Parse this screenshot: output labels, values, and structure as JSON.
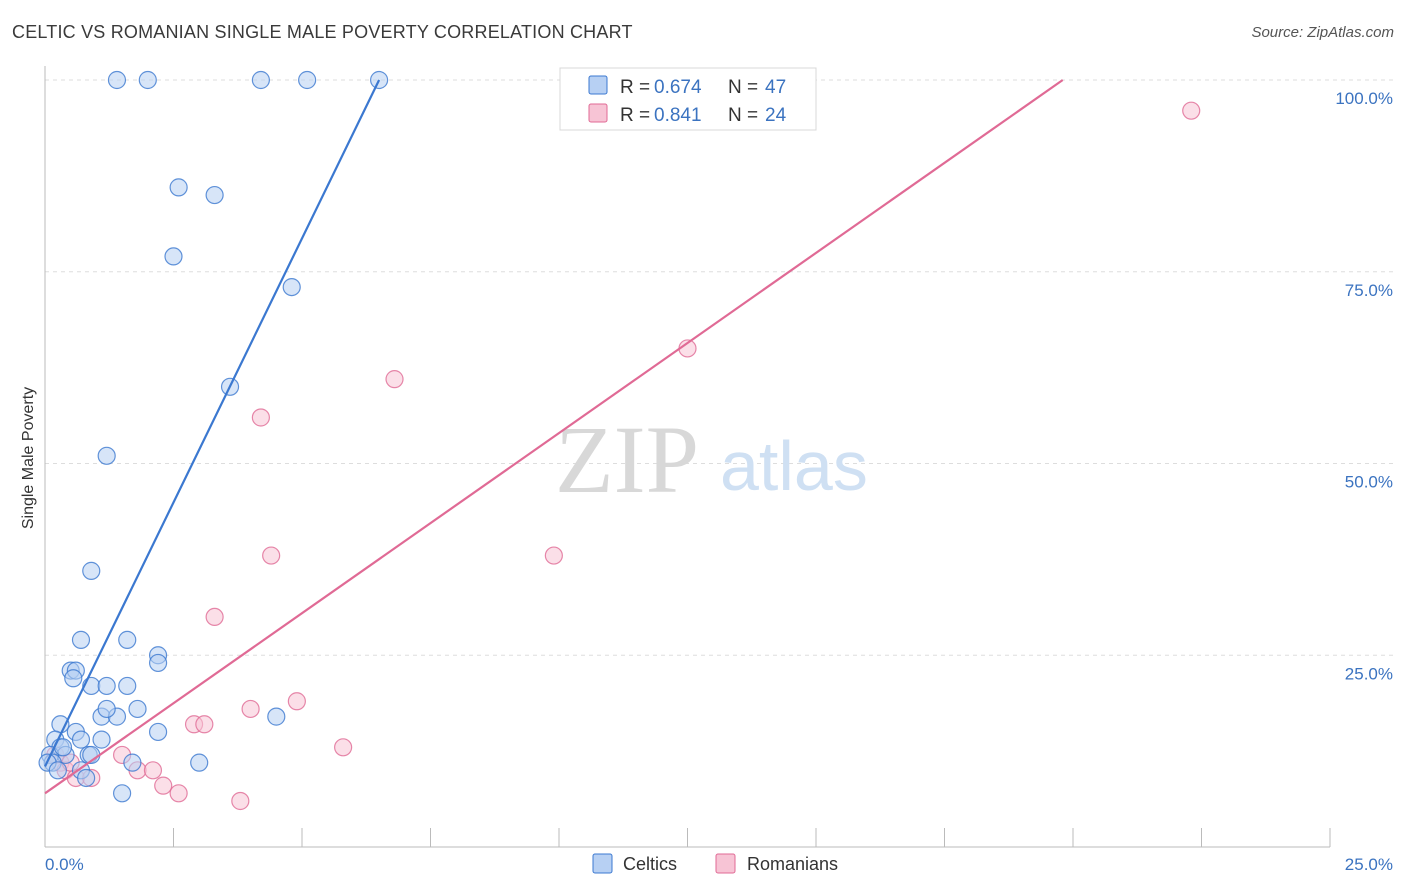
{
  "title": "CELTIC VS ROMANIAN SINGLE MALE POVERTY CORRELATION CHART",
  "source": "Source: ZipAtlas.com",
  "watermark": {
    "part1": "ZIP",
    "part2": "atlas"
  },
  "colors": {
    "celtic": "#3b78d0",
    "celtic_fill": "#b7d0f3",
    "romanian": "#e06a95",
    "romanian_fill": "#f7c4d5",
    "axis_text": "#3b73c0",
    "grid": "#dddddd"
  },
  "chart_data": {
    "type": "scatter",
    "title": "CELTIC VS ROMANIAN SINGLE MALE POVERTY CORRELATION CHART",
    "xlabel": "",
    "ylabel": "Single Male Poverty",
    "xlim": [
      0,
      25
    ],
    "ylim": [
      0,
      100
    ],
    "x_tick_labels": [
      "0.0%",
      "25.0%"
    ],
    "y_ticks": [
      25,
      50,
      75,
      100
    ],
    "y_tick_labels": [
      "25.0%",
      "50.0%",
      "75.0%",
      "100.0%"
    ],
    "legend": [
      {
        "r_label": "R = ",
        "r": "0.674",
        "n_label": "N = ",
        "n": "47"
      },
      {
        "r_label": "R = ",
        "r": "0.841",
        "n_label": "N = ",
        "n": "24"
      }
    ],
    "bottom_legend": [
      "Celtics",
      "Romanians"
    ],
    "series": [
      {
        "name": "Celtics",
        "points": [
          [
            1.4,
            100
          ],
          [
            2.0,
            100
          ],
          [
            4.2,
            100
          ],
          [
            5.1,
            100
          ],
          [
            6.5,
            100
          ],
          [
            2.6,
            86
          ],
          [
            3.3,
            85
          ],
          [
            2.5,
            77
          ],
          [
            4.8,
            73
          ],
          [
            3.6,
            60
          ],
          [
            1.2,
            51
          ],
          [
            0.9,
            36
          ],
          [
            0.7,
            27
          ],
          [
            1.6,
            27
          ],
          [
            0.5,
            23
          ],
          [
            0.6,
            23
          ],
          [
            0.55,
            22
          ],
          [
            2.2,
            25
          ],
          [
            2.2,
            24
          ],
          [
            0.9,
            21
          ],
          [
            1.2,
            21
          ],
          [
            1.6,
            21
          ],
          [
            1.8,
            18
          ],
          [
            1.1,
            17
          ],
          [
            1.4,
            17
          ],
          [
            1.2,
            18
          ],
          [
            2.2,
            15
          ],
          [
            0.3,
            16
          ],
          [
            0.6,
            15
          ],
          [
            0.7,
            14
          ],
          [
            0.2,
            14
          ],
          [
            0.3,
            13
          ],
          [
            1.1,
            14
          ],
          [
            0.4,
            12
          ],
          [
            0.85,
            12
          ],
          [
            0.1,
            12
          ],
          [
            0.15,
            11
          ],
          [
            0.05,
            11
          ],
          [
            1.7,
            11
          ],
          [
            0.7,
            10
          ],
          [
            3.0,
            11
          ],
          [
            4.5,
            17
          ],
          [
            0.8,
            9
          ],
          [
            1.5,
            7
          ],
          [
            0.35,
            13
          ],
          [
            0.9,
            12
          ],
          [
            0.25,
            10
          ]
        ],
        "trend": [
          [
            0,
            10.5
          ],
          [
            6.5,
            100
          ]
        ]
      },
      {
        "name": "Romanians",
        "points": [
          [
            22.3,
            96
          ],
          [
            12.5,
            65
          ],
          [
            6.8,
            61
          ],
          [
            4.2,
            56
          ],
          [
            4.4,
            38
          ],
          [
            9.9,
            38
          ],
          [
            3.3,
            30
          ],
          [
            4.0,
            18
          ],
          [
            4.9,
            19
          ],
          [
            2.9,
            16
          ],
          [
            3.1,
            16
          ],
          [
            5.8,
            13
          ],
          [
            1.5,
            12
          ],
          [
            1.8,
            10
          ],
          [
            2.1,
            10
          ],
          [
            2.3,
            8
          ],
          [
            2.6,
            7
          ],
          [
            3.8,
            6
          ],
          [
            0.3,
            11
          ],
          [
            0.4,
            10
          ],
          [
            0.6,
            9
          ],
          [
            0.9,
            9
          ],
          [
            0.2,
            12
          ],
          [
            0.5,
            11
          ]
        ],
        "trend": [
          [
            0,
            7
          ],
          [
            19.8,
            100
          ]
        ]
      }
    ]
  }
}
